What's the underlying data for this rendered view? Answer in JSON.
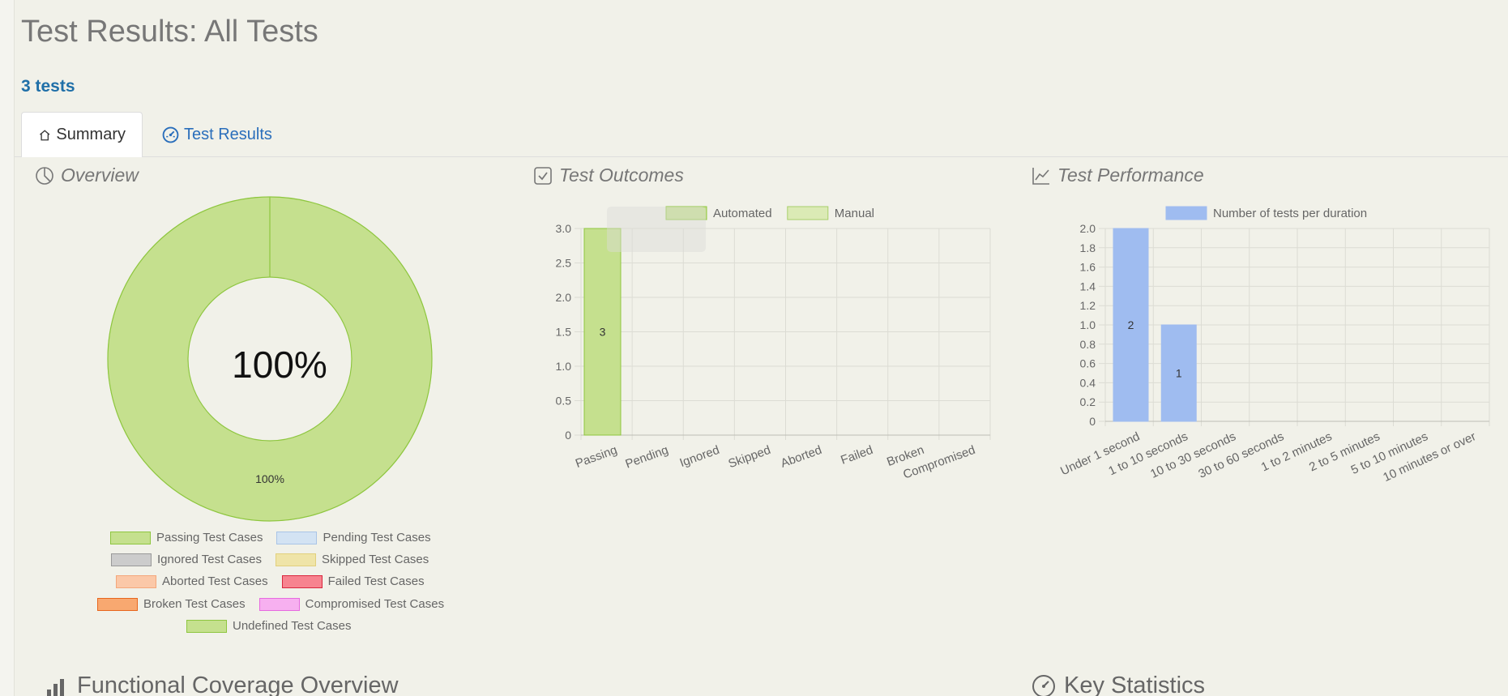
{
  "page": {
    "title": "Test Results: All Tests",
    "count": "3 tests"
  },
  "tabs": [
    {
      "label": "Summary"
    },
    {
      "label": "Test Results"
    }
  ],
  "panels": {
    "overview": "Overview",
    "outcomes": "Test Outcomes",
    "performance": "Test Performance"
  },
  "sections": {
    "functional": "Functional Coverage Overview",
    "key_stats": "Key Statistics"
  },
  "colors": {
    "passing": "#c5e08e",
    "automated": "#c5e08e",
    "manual": "#dbeab5",
    "duration": "#9fbcf0"
  },
  "chart_data": [
    {
      "type": "pie",
      "center_label": "100%",
      "slices": [
        {
          "name": "Passing Test Cases",
          "value": 100,
          "label": "100%"
        }
      ],
      "legend": [
        {
          "name": "Passing Test Cases",
          "fill": "#c5e08e",
          "stroke": "#8ec63f"
        },
        {
          "name": "Pending Test Cases",
          "fill": "#d3e3f3",
          "stroke": "#a9c4e6"
        },
        {
          "name": "Ignored Test Cases",
          "fill": "#cccccc",
          "stroke": "#999999"
        },
        {
          "name": "Skipped Test Cases",
          "fill": "#efe4a8",
          "stroke": "#e2d07d"
        },
        {
          "name": "Aborted Test Cases",
          "fill": "#fbc8a8",
          "stroke": "#f4a77b"
        },
        {
          "name": "Failed Test Cases",
          "fill": "#f7838f",
          "stroke": "#d9263d"
        },
        {
          "name": "Broken Test Cases",
          "fill": "#f8a870",
          "stroke": "#e8661d"
        },
        {
          "name": "Compromised Test Cases",
          "fill": "#f7b0f0",
          "stroke": "#e76ae0"
        },
        {
          "name": "Undefined Test Cases",
          "fill": "#c5e08e",
          "stroke": "#8ec63f"
        }
      ]
    },
    {
      "type": "bar",
      "categories": [
        "Passing",
        "Pending",
        "Ignored",
        "Skipped",
        "Aborted",
        "Failed",
        "Broken",
        "Compromised"
      ],
      "series": [
        {
          "name": "Automated",
          "values": [
            3,
            0,
            0,
            0,
            0,
            0,
            0,
            0
          ],
          "labels": [
            "3",
            "",
            "",
            "",
            "",
            "",
            "",
            ""
          ]
        },
        {
          "name": "Manual",
          "values": [
            0,
            0,
            0,
            0,
            0,
            0,
            0,
            0
          ],
          "labels": [
            "",
            "",
            "",
            "",
            "",
            "",
            "",
            ""
          ]
        }
      ],
      "ylim": [
        0,
        3
      ],
      "yticks": [
        "0",
        "0.5",
        "1.0",
        "1.5",
        "2.0",
        "2.5",
        "3.0"
      ],
      "grid": true,
      "legend": "top"
    },
    {
      "type": "bar",
      "categories": [
        "Under 1 second",
        "1 to 10 seconds",
        "10 to 30 seconds",
        "30 to 60 seconds",
        "1 to 2 minutes",
        "2 to 5 minutes",
        "5 to 10 minutes",
        "10 minutes or over"
      ],
      "series": [
        {
          "name": "Number of tests per duration",
          "values": [
            2,
            1,
            0,
            0,
            0,
            0,
            0,
            0
          ],
          "labels": [
            "2",
            "1",
            "",
            "",
            "",
            "",
            "",
            ""
          ]
        }
      ],
      "ylim": [
        0,
        2
      ],
      "yticks": [
        "0",
        "0.2",
        "0.4",
        "0.6",
        "0.8",
        "1.0",
        "1.2",
        "1.4",
        "1.6",
        "1.8",
        "2.0"
      ],
      "grid": true,
      "legend": "top"
    }
  ]
}
